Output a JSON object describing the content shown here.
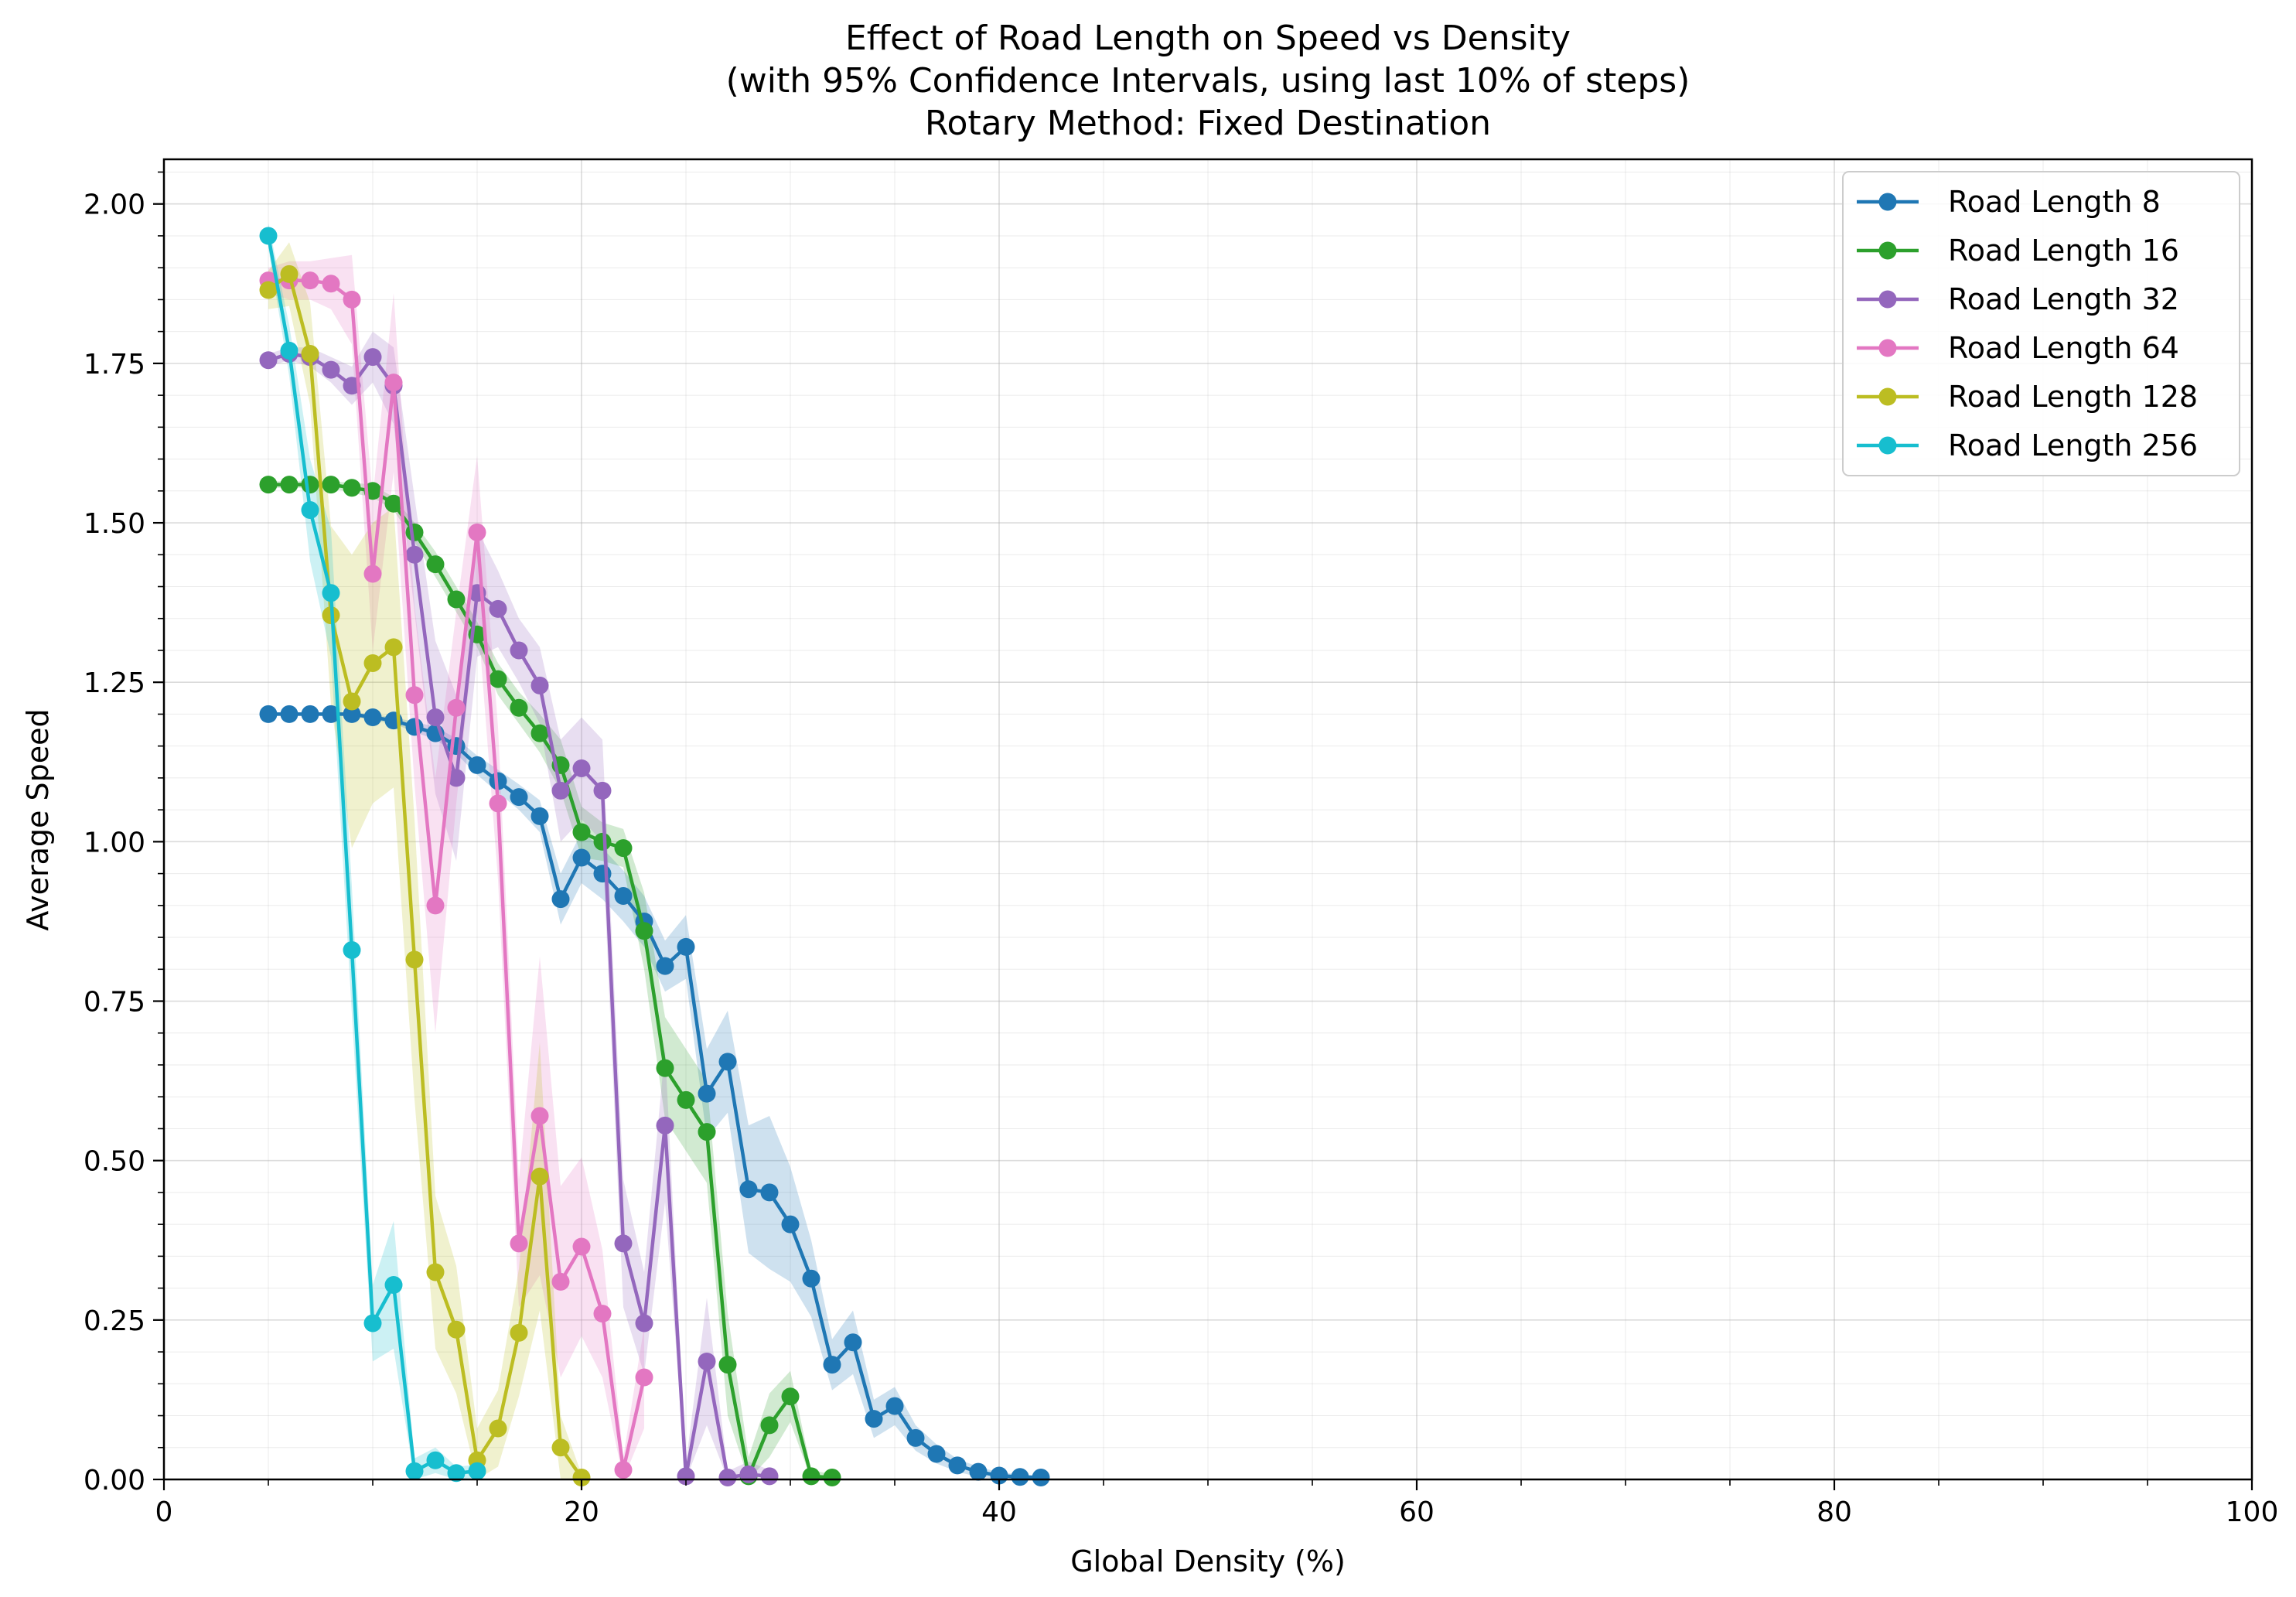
{
  "chart_data": {
    "type": "line",
    "title": [
      "Effect of Road Length on Speed vs Density",
      "(with 95% Confidence Intervals, using last 10% of steps)",
      "Rotary Method: Fixed Destination"
    ],
    "xlabel": "Global Density (%)",
    "ylabel": "Average Speed",
    "xlim": [
      0,
      100
    ],
    "ylim": [
      0,
      2.07
    ],
    "x_ticks": [
      0,
      20,
      40,
      60,
      80,
      100
    ],
    "y_ticks": [
      0.0,
      0.25,
      0.5,
      0.75,
      1.0,
      1.25,
      1.5,
      1.75,
      2.0
    ],
    "x_tick_labels": [
      "0",
      "20",
      "40",
      "60",
      "80",
      "100"
    ],
    "y_tick_labels": [
      "0.00",
      "0.25",
      "0.50",
      "0.75",
      "1.00",
      "1.25",
      "1.50",
      "1.75",
      "2.00"
    ],
    "grid": true,
    "legend_position": "top-right",
    "series": [
      {
        "name": "Road Length 8",
        "color": "#1f77b4",
        "x": [
          5,
          6,
          7,
          8,
          9,
          10,
          11,
          12,
          13,
          14,
          15,
          16,
          17,
          18,
          19,
          20,
          21,
          22,
          23,
          24,
          25,
          26,
          27,
          28,
          29,
          30,
          31,
          32,
          33,
          34,
          35,
          36,
          37,
          38,
          39,
          40,
          41,
          42
        ],
        "y": [
          1.2,
          1.2,
          1.2,
          1.2,
          1.2,
          1.195,
          1.19,
          1.18,
          1.17,
          1.15,
          1.12,
          1.095,
          1.07,
          1.04,
          0.91,
          0.975,
          0.95,
          0.915,
          0.875,
          0.805,
          0.835,
          0.605,
          0.655,
          0.455,
          0.45,
          0.4,
          0.315,
          0.18,
          0.215,
          0.095,
          0.115,
          0.065,
          0.04,
          0.022,
          0.012,
          0.006,
          0.004,
          0.003
        ],
        "ci_halfwidth": [
          0.003,
          0.003,
          0.003,
          0.003,
          0.003,
          0.005,
          0.005,
          0.008,
          0.01,
          0.012,
          0.015,
          0.018,
          0.02,
          0.025,
          0.04,
          0.04,
          0.04,
          0.04,
          0.04,
          0.04,
          0.05,
          0.07,
          0.08,
          0.1,
          0.12,
          0.09,
          0.06,
          0.04,
          0.05,
          0.03,
          0.03,
          0.02,
          0.015,
          0.01,
          0.008,
          0.005,
          0.004,
          0.003
        ]
      },
      {
        "name": "Road Length 16",
        "color": "#2ca02c",
        "x": [
          5,
          6,
          7,
          8,
          9,
          10,
          11,
          12,
          13,
          14,
          15,
          16,
          17,
          18,
          19,
          20,
          21,
          22,
          23,
          24,
          25,
          26,
          27,
          28,
          29,
          30,
          31,
          32
        ],
        "y": [
          1.56,
          1.56,
          1.56,
          1.56,
          1.555,
          1.55,
          1.53,
          1.485,
          1.435,
          1.38,
          1.325,
          1.255,
          1.21,
          1.17,
          1.12,
          1.015,
          1.0,
          0.99,
          0.86,
          0.645,
          0.595,
          0.545,
          0.18,
          0.005,
          0.085,
          0.13,
          0.005,
          0.003
        ],
        "ci_halfwidth": [
          0.005,
          0.005,
          0.005,
          0.005,
          0.008,
          0.01,
          0.01,
          0.015,
          0.02,
          0.02,
          0.02,
          0.025,
          0.025,
          0.03,
          0.04,
          0.04,
          0.03,
          0.03,
          0.06,
          0.08,
          0.08,
          0.08,
          0.08,
          0.03,
          0.05,
          0.04,
          0.01,
          0.005
        ]
      },
      {
        "name": "Road Length 32",
        "color": "#9467bd",
        "x": [
          5,
          6,
          7,
          8,
          9,
          10,
          11,
          12,
          13,
          14,
          15,
          16,
          17,
          18,
          19,
          20,
          21,
          22,
          23,
          24,
          25,
          26,
          27,
          28,
          29
        ],
        "y": [
          1.755,
          1.765,
          1.76,
          1.74,
          1.715,
          1.76,
          1.715,
          1.45,
          1.195,
          1.1,
          1.39,
          1.365,
          1.3,
          1.245,
          1.08,
          1.115,
          1.08,
          0.37,
          0.245,
          0.555,
          0.005,
          0.185,
          0.003,
          0.008,
          0.005
        ],
        "ci_halfwidth": [
          0.01,
          0.01,
          0.015,
          0.02,
          0.03,
          0.04,
          0.06,
          0.09,
          0.12,
          0.13,
          0.1,
          0.06,
          0.05,
          0.06,
          0.08,
          0.08,
          0.08,
          0.1,
          0.08,
          0.12,
          0.02,
          0.1,
          0.01,
          0.02,
          0.01
        ]
      },
      {
        "name": "Road Length 64",
        "color": "#e377c2",
        "x": [
          5,
          6,
          7,
          8,
          9,
          10,
          11,
          12,
          13,
          14,
          15,
          16,
          17,
          18,
          19,
          20,
          21,
          22,
          23
        ],
        "y": [
          1.88,
          1.88,
          1.88,
          1.875,
          1.85,
          1.42,
          1.72,
          1.23,
          0.9,
          1.21,
          1.485,
          1.06,
          0.37,
          0.57,
          0.31,
          0.365,
          0.26,
          0.015,
          0.16
        ],
        "ci_halfwidth": [
          0.02,
          0.03,
          0.03,
          0.04,
          0.07,
          0.12,
          0.14,
          0.14,
          0.2,
          0.15,
          0.12,
          0.12,
          0.1,
          0.25,
          0.15,
          0.14,
          0.1,
          0.02,
          0.08
        ]
      },
      {
        "name": "Road Length 128",
        "color": "#bcbd22",
        "x": [
          5,
          6,
          7,
          8,
          9,
          10,
          11,
          12,
          13,
          14,
          15,
          16,
          17,
          18,
          19,
          20
        ],
        "y": [
          1.865,
          1.89,
          1.765,
          1.355,
          1.22,
          1.28,
          1.305,
          0.815,
          0.325,
          0.235,
          0.03,
          0.08,
          0.23,
          0.475,
          0.05,
          0.003
        ],
        "ci_halfwidth": [
          0.03,
          0.05,
          0.08,
          0.14,
          0.23,
          0.22,
          0.22,
          0.22,
          0.12,
          0.1,
          0.05,
          0.06,
          0.1,
          0.21,
          0.05,
          0.005
        ]
      },
      {
        "name": "Road Length 256",
        "color": "#17becf",
        "x": [
          5,
          6,
          7,
          8,
          9,
          10,
          11,
          12,
          13,
          14,
          15
        ],
        "y": [
          1.95,
          1.77,
          1.52,
          1.39,
          0.83,
          0.245,
          0.305,
          0.013,
          0.03,
          0.01,
          0.013
        ],
        "ci_halfwidth": [
          0.02,
          0.04,
          0.08,
          0.1,
          0.1,
          0.06,
          0.1,
          0.02,
          0.02,
          0.01,
          0.01
        ]
      }
    ]
  }
}
